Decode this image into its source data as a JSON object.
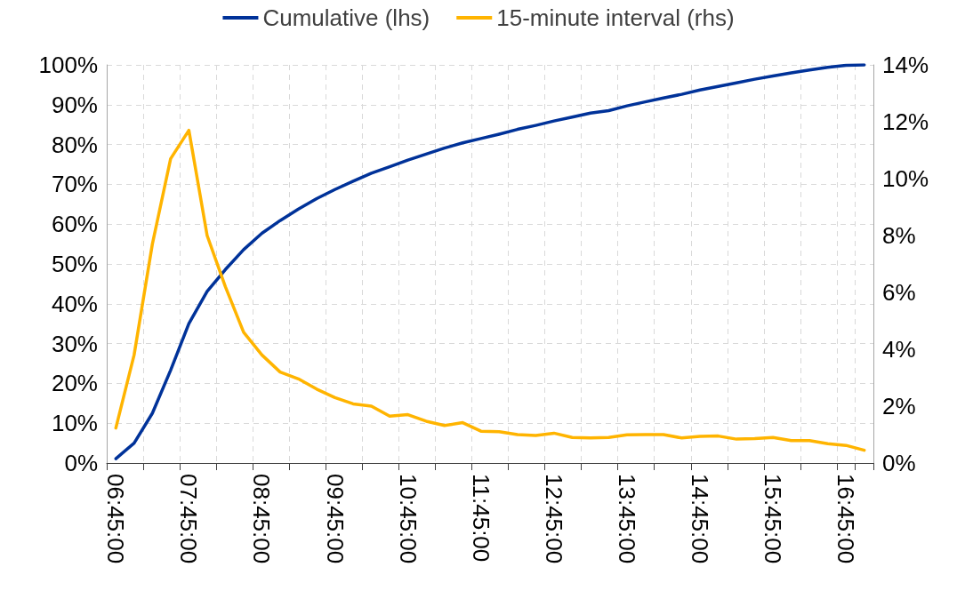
{
  "chart_data": {
    "type": "line",
    "categories": [
      "06:45:00",
      null,
      null,
      null,
      "07:45:00",
      null,
      null,
      null,
      "08:45:00",
      null,
      null,
      null,
      "09:45:00",
      null,
      null,
      null,
      "10:45:00",
      null,
      null,
      null,
      "11:45:00",
      null,
      null,
      null,
      "12:45:00",
      null,
      null,
      null,
      "13:45:00",
      null,
      null,
      null,
      "14:45:00",
      null,
      null,
      null,
      "15:45:00",
      null,
      null,
      null,
      "16:45:00",
      null
    ],
    "series": [
      {
        "name": "Cumulative (lhs)",
        "color": "#003299",
        "values": [
          1.1,
          5.0,
          12.5,
          23.3,
          35.0,
          43.1,
          48.6,
          53.6,
          57.7,
          60.9,
          63.8,
          66.4,
          68.7,
          70.8,
          72.8,
          74.4,
          76.1,
          77.6,
          79.1,
          80.4,
          81.5,
          82.6,
          83.8,
          84.8,
          85.9,
          86.9,
          87.9,
          88.5,
          89.7,
          90.7,
          91.7,
          92.6,
          93.7,
          94.6,
          95.5,
          96.4,
          97.2,
          98.0,
          98.7,
          99.4,
          99.9,
          100.0
        ]
      },
      {
        "name": "15-minute interval (rhs)",
        "color": "#ffb400",
        "axis": "y2",
        "values": [
          1.23,
          3.8,
          7.7,
          10.7,
          11.7,
          8.0,
          6.2,
          4.6,
          3.8,
          3.2,
          2.96,
          2.6,
          2.3,
          2.08,
          2.0,
          1.65,
          1.7,
          1.47,
          1.32,
          1.42,
          1.12,
          1.1,
          1.0,
          0.97,
          1.05,
          0.9,
          0.88,
          0.9,
          0.99,
          1.0,
          1.0,
          0.88,
          0.94,
          0.95,
          0.84,
          0.86,
          0.9,
          0.79,
          0.79,
          0.68,
          0.62,
          0.45
        ]
      }
    ],
    "ylim": [
      0,
      100
    ],
    "yticks": [
      {
        "value": 0,
        "label": "0%"
      },
      {
        "value": 10,
        "label": "10%"
      },
      {
        "value": 20,
        "label": "20%"
      },
      {
        "value": 30,
        "label": "30%"
      },
      {
        "value": 40,
        "label": "40%"
      },
      {
        "value": 50,
        "label": "50%"
      },
      {
        "value": 60,
        "label": "60%"
      },
      {
        "value": 70,
        "label": "70%"
      },
      {
        "value": 80,
        "label": "80%"
      },
      {
        "value": 90,
        "label": "90%"
      },
      {
        "value": 100,
        "label": "100%"
      }
    ],
    "y2lim": [
      0,
      14
    ],
    "y2ticks": [
      {
        "value": 0,
        "label": "0%"
      },
      {
        "value": 2,
        "label": "2%"
      },
      {
        "value": 4,
        "label": "4%"
      },
      {
        "value": 6,
        "label": "6%"
      },
      {
        "value": 8,
        "label": "8%"
      },
      {
        "value": 10,
        "label": "10%"
      },
      {
        "value": 12,
        "label": "12%"
      },
      {
        "value": 14,
        "label": "14%"
      }
    ],
    "grid": true,
    "legend": "top",
    "marker": "none",
    "line_style": "solid"
  }
}
